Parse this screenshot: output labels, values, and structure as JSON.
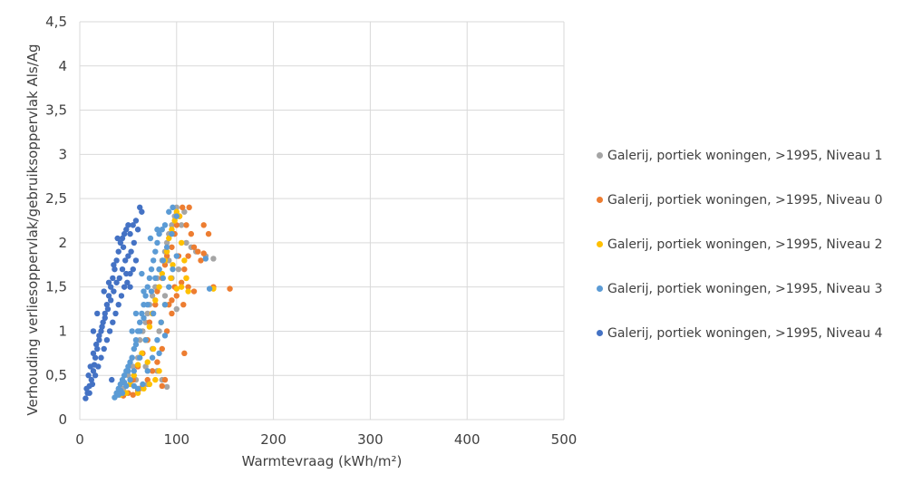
{
  "chart_data": {
    "type": "scatter",
    "title": "",
    "xlabel": "Warmtevraag (kWh/m²)",
    "ylabel": "Verhouding verliesoppervlak/gebruiksoppervlak Als/Ag",
    "xlim": [
      0,
      500
    ],
    "ylim": [
      0,
      4.5
    ],
    "xticks": [
      0,
      100,
      200,
      300,
      400,
      500
    ],
    "xtick_labels": [
      "0",
      "100",
      "200",
      "300",
      "400",
      "500"
    ],
    "yticks": [
      0,
      0.5,
      1,
      1.5,
      2,
      2.5,
      3,
      3.5,
      4,
      4.5
    ],
    "ytick_labels": [
      "0",
      "0,5",
      "1",
      "1,5",
      "2",
      "2,5",
      "3",
      "3,5",
      "4",
      "4,5"
    ],
    "grid": true,
    "legend_position": "right",
    "series": [
      {
        "name": "Galerij, portiek woningen, >1995, Niveau 1",
        "color": "#a5a5a5",
        "points": [
          [
            40,
            0.3
          ],
          [
            45,
            0.35
          ],
          [
            50,
            0.5
          ],
          [
            55,
            0.6
          ],
          [
            60,
            0.7
          ],
          [
            62,
            0.9
          ],
          [
            65,
            1.0
          ],
          [
            68,
            1.1
          ],
          [
            70,
            1.2
          ],
          [
            72,
            1.3
          ],
          [
            75,
            1.4
          ],
          [
            78,
            1.5
          ],
          [
            80,
            1.6
          ],
          [
            82,
            1.7
          ],
          [
            85,
            1.8
          ],
          [
            88,
            1.9
          ],
          [
            90,
            2.0
          ],
          [
            92,
            2.1
          ],
          [
            95,
            2.2
          ],
          [
            98,
            2.3
          ],
          [
            100,
            2.4
          ],
          [
            105,
            2.2
          ],
          [
            110,
            2.0
          ],
          [
            115,
            1.95
          ],
          [
            120,
            1.9
          ],
          [
            130,
            1.85
          ],
          [
            138,
            1.82
          ],
          [
            62,
            0.35
          ],
          [
            70,
            0.4
          ],
          [
            80,
            0.55
          ],
          [
            85,
            0.45
          ],
          [
            90,
            0.37
          ],
          [
            100,
            1.25
          ],
          [
            95,
            1.6
          ],
          [
            88,
            1.4
          ],
          [
            75,
            0.8
          ],
          [
            68,
            0.6
          ],
          [
            58,
            0.45
          ],
          [
            52,
            0.4
          ],
          [
            82,
            1.0
          ],
          [
            92,
            1.8
          ],
          [
            102,
            1.7
          ],
          [
            108,
            2.35
          ]
        ]
      },
      {
        "name": "Galerij, portiek woningen, >1995, Niveau 0",
        "color": "#ed7d31",
        "points": [
          [
            45,
            0.27
          ],
          [
            50,
            0.3
          ],
          [
            55,
            0.45
          ],
          [
            60,
            0.6
          ],
          [
            65,
            0.75
          ],
          [
            70,
            0.9
          ],
          [
            72,
            1.1
          ],
          [
            75,
            1.2
          ],
          [
            78,
            1.3
          ],
          [
            80,
            1.45
          ],
          [
            85,
            1.6
          ],
          [
            88,
            1.75
          ],
          [
            90,
            1.85
          ],
          [
            95,
            1.95
          ],
          [
            98,
            2.1
          ],
          [
            100,
            2.2
          ],
          [
            103,
            2.3
          ],
          [
            106,
            2.4
          ],
          [
            110,
            2.2
          ],
          [
            113,
            2.4
          ],
          [
            115,
            2.1
          ],
          [
            118,
            1.95
          ],
          [
            122,
            1.9
          ],
          [
            125,
            1.8
          ],
          [
            128,
            2.2
          ],
          [
            133,
            2.1
          ],
          [
            138,
            1.5
          ],
          [
            155,
            1.48
          ],
          [
            118,
            1.45
          ],
          [
            112,
            1.5
          ],
          [
            108,
            1.7
          ],
          [
            105,
            1.55
          ],
          [
            100,
            1.4
          ],
          [
            95,
            1.2
          ],
          [
            90,
            1.0
          ],
          [
            85,
            0.8
          ],
          [
            80,
            0.65
          ],
          [
            75,
            0.55
          ],
          [
            70,
            0.45
          ],
          [
            65,
            0.38
          ],
          [
            60,
            0.33
          ],
          [
            55,
            0.28
          ],
          [
            108,
            0.75
          ],
          [
            88,
            0.45
          ],
          [
            85,
            0.38
          ],
          [
            95,
            1.35
          ],
          [
            102,
            1.85
          ],
          [
            112,
            1.85
          ],
          [
            110,
            1.6
          ],
          [
            107,
            1.3
          ],
          [
            98,
            1.5
          ],
          [
            92,
            1.3
          ],
          [
            128,
            1.88
          ]
        ]
      },
      {
        "name": "Galerij, portiek woningen, >1995, Niveau 2",
        "color": "#ffc000",
        "points": [
          [
            42,
            0.28
          ],
          [
            48,
            0.3
          ],
          [
            52,
            0.4
          ],
          [
            56,
            0.5
          ],
          [
            60,
            0.62
          ],
          [
            64,
            0.75
          ],
          [
            68,
            0.9
          ],
          [
            72,
            1.05
          ],
          [
            75,
            1.2
          ],
          [
            78,
            1.35
          ],
          [
            82,
            1.5
          ],
          [
            85,
            1.65
          ],
          [
            88,
            1.8
          ],
          [
            90,
            1.9
          ],
          [
            92,
            2.05
          ],
          [
            95,
            2.15
          ],
          [
            98,
            2.25
          ],
          [
            100,
            2.35
          ],
          [
            103,
            2.3
          ],
          [
            105,
            2.0
          ],
          [
            108,
            1.8
          ],
          [
            110,
            1.6
          ],
          [
            112,
            1.45
          ],
          [
            105,
            1.5
          ],
          [
            100,
            1.48
          ],
          [
            138,
            1.48
          ],
          [
            82,
            0.55
          ],
          [
            78,
            0.45
          ],
          [
            72,
            0.4
          ],
          [
            66,
            0.35
          ],
          [
            60,
            0.3
          ],
          [
            88,
            1.3
          ],
          [
            94,
            1.6
          ],
          [
            84,
            1.1
          ],
          [
            76,
            0.8
          ],
          [
            70,
            0.65
          ],
          [
            96,
            1.75
          ]
        ]
      },
      {
        "name": "Galerij, portiek woningen, >1995, Niveau 3",
        "color": "#5b9bd5",
        "points": [
          [
            36,
            0.25
          ],
          [
            38,
            0.3
          ],
          [
            40,
            0.35
          ],
          [
            42,
            0.4
          ],
          [
            44,
            0.45
          ],
          [
            46,
            0.5
          ],
          [
            48,
            0.55
          ],
          [
            50,
            0.6
          ],
          [
            52,
            0.65
          ],
          [
            54,
            0.7
          ],
          [
            56,
            0.8
          ],
          [
            58,
            0.9
          ],
          [
            60,
            1.0
          ],
          [
            62,
            1.1
          ],
          [
            64,
            1.2
          ],
          [
            66,
            1.3
          ],
          [
            68,
            1.4
          ],
          [
            70,
            1.5
          ],
          [
            72,
            1.6
          ],
          [
            74,
            1.7
          ],
          [
            76,
            1.8
          ],
          [
            78,
            1.9
          ],
          [
            80,
            2.0
          ],
          [
            82,
            2.1
          ],
          [
            85,
            2.15
          ],
          [
            88,
            2.2
          ],
          [
            92,
            2.35
          ],
          [
            96,
            2.4
          ],
          [
            100,
            2.3
          ],
          [
            95,
            2.1
          ],
          [
            90,
            1.95
          ],
          [
            86,
            1.8
          ],
          [
            82,
            1.7
          ],
          [
            78,
            1.6
          ],
          [
            74,
            1.45
          ],
          [
            70,
            1.3
          ],
          [
            66,
            1.15
          ],
          [
            62,
            1.0
          ],
          [
            58,
            0.85
          ],
          [
            54,
            0.7
          ],
          [
            50,
            0.55
          ],
          [
            46,
            0.42
          ],
          [
            42,
            0.33
          ],
          [
            40,
            0.28
          ],
          [
            56,
            0.38
          ],
          [
            60,
            0.35
          ],
          [
            65,
            0.4
          ],
          [
            70,
            0.55
          ],
          [
            75,
            0.7
          ],
          [
            80,
            0.9
          ],
          [
            84,
            1.1
          ],
          [
            88,
            1.3
          ],
          [
            92,
            1.5
          ],
          [
            96,
            1.7
          ],
          [
            100,
            1.85
          ],
          [
            86,
            1.6
          ],
          [
            76,
            1.2
          ],
          [
            68,
            0.9
          ],
          [
            62,
            0.7
          ],
          [
            56,
            0.55
          ],
          [
            52,
            0.45
          ],
          [
            48,
            0.38
          ],
          [
            44,
            0.3
          ],
          [
            64,
            1.65
          ],
          [
            66,
            1.45
          ],
          [
            58,
            1.2
          ],
          [
            54,
            1.0
          ],
          [
            73,
            2.05
          ],
          [
            80,
            2.15
          ],
          [
            134,
            1.48
          ],
          [
            130,
            1.82
          ],
          [
            88,
            0.95
          ],
          [
            82,
            0.75
          ]
        ]
      },
      {
        "name": "Galerij, portiek woningen, >1995, Niveau 4",
        "color": "#4472c4",
        "points": [
          [
            6,
            0.24
          ],
          [
            8,
            0.3
          ],
          [
            10,
            0.38
          ],
          [
            12,
            0.45
          ],
          [
            14,
            0.55
          ],
          [
            15,
            0.62
          ],
          [
            16,
            0.7
          ],
          [
            18,
            0.8
          ],
          [
            20,
            0.9
          ],
          [
            22,
            1.0
          ],
          [
            24,
            1.1
          ],
          [
            26,
            1.2
          ],
          [
            28,
            1.3
          ],
          [
            30,
            1.4
          ],
          [
            32,
            1.5
          ],
          [
            34,
            1.6
          ],
          [
            36,
            1.7
          ],
          [
            38,
            1.8
          ],
          [
            40,
            1.9
          ],
          [
            42,
            2.0
          ],
          [
            44,
            2.05
          ],
          [
            46,
            2.1
          ],
          [
            48,
            2.15
          ],
          [
            50,
            2.2
          ],
          [
            52,
            2.1
          ],
          [
            55,
            2.2
          ],
          [
            58,
            2.25
          ],
          [
            62,
            2.4
          ],
          [
            64,
            2.35
          ],
          [
            60,
            2.15
          ],
          [
            56,
            2.0
          ],
          [
            53,
            1.9
          ],
          [
            50,
            1.85
          ],
          [
            47,
            1.8
          ],
          [
            44,
            1.7
          ],
          [
            41,
            1.6
          ],
          [
            38,
            1.55
          ],
          [
            35,
            1.45
          ],
          [
            32,
            1.35
          ],
          [
            29,
            1.25
          ],
          [
            26,
            1.15
          ],
          [
            23,
            1.05
          ],
          [
            20,
            0.95
          ],
          [
            17,
            0.85
          ],
          [
            14,
            0.75
          ],
          [
            11,
            0.6
          ],
          [
            9,
            0.5
          ],
          [
            7,
            0.35
          ],
          [
            10,
            0.3
          ],
          [
            13,
            0.4
          ],
          [
            16,
            0.5
          ],
          [
            19,
            0.6
          ],
          [
            22,
            0.7
          ],
          [
            25,
            0.8
          ],
          [
            28,
            0.9
          ],
          [
            31,
            1.0
          ],
          [
            34,
            1.1
          ],
          [
            37,
            1.2
          ],
          [
            40,
            1.3
          ],
          [
            43,
            1.4
          ],
          [
            46,
            1.5
          ],
          [
            49,
            1.55
          ],
          [
            52,
            1.65
          ],
          [
            55,
            1.7
          ],
          [
            58,
            1.8
          ],
          [
            14,
            1.0
          ],
          [
            18,
            1.2
          ],
          [
            25,
            1.45
          ],
          [
            33,
            0.45
          ],
          [
            30,
            1.55
          ],
          [
            35,
            1.75
          ],
          [
            39,
            2.05
          ],
          [
            45,
            1.95
          ],
          [
            48,
            1.65
          ],
          [
            52,
            1.5
          ]
        ]
      }
    ]
  }
}
